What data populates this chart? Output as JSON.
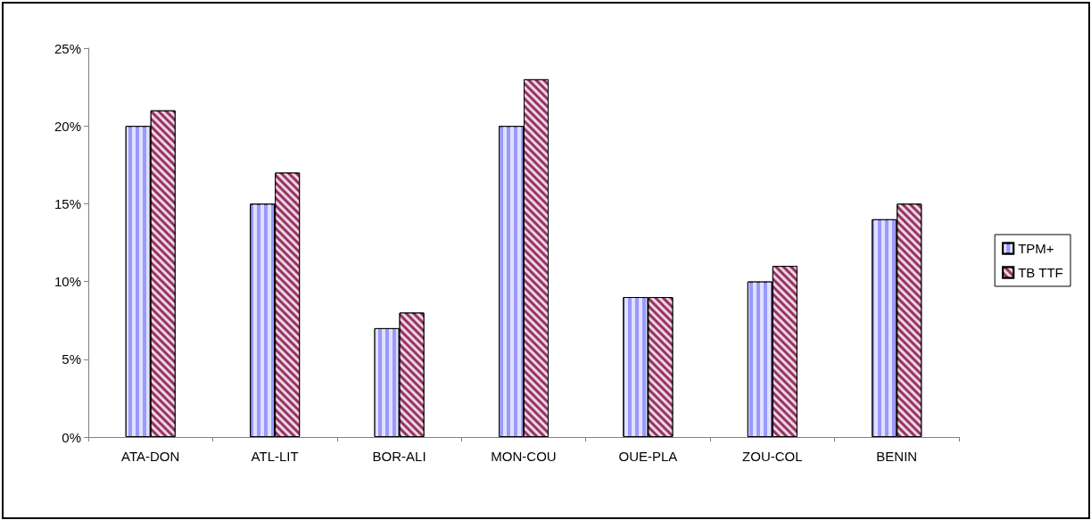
{
  "chart_data": {
    "type": "bar",
    "categories": [
      "ATA-DON",
      "ATL-LIT",
      "BOR-ALI",
      "MON-COU",
      "OUE-PLA",
      "ZOU-COL",
      "BENIN"
    ],
    "series": [
      {
        "name": "TPM+",
        "color": "#9999ff",
        "values": [
          20,
          15,
          7,
          20,
          9,
          10,
          14
        ]
      },
      {
        "name": "TB TTF",
        "color": "#993366",
        "values": [
          21,
          17,
          8,
          23,
          9,
          11,
          15
        ]
      }
    ],
    "ylim": [
      0,
      25
    ],
    "yticks": [
      {
        "value": 0,
        "label": "0%"
      },
      {
        "value": 5,
        "label": "5%"
      },
      {
        "value": 10,
        "label": "10%"
      },
      {
        "value": 15,
        "label": "15%"
      },
      {
        "value": 20,
        "label": "20%"
      },
      {
        "value": 25,
        "label": "25%"
      }
    ],
    "grid": false,
    "legend": "right"
  }
}
